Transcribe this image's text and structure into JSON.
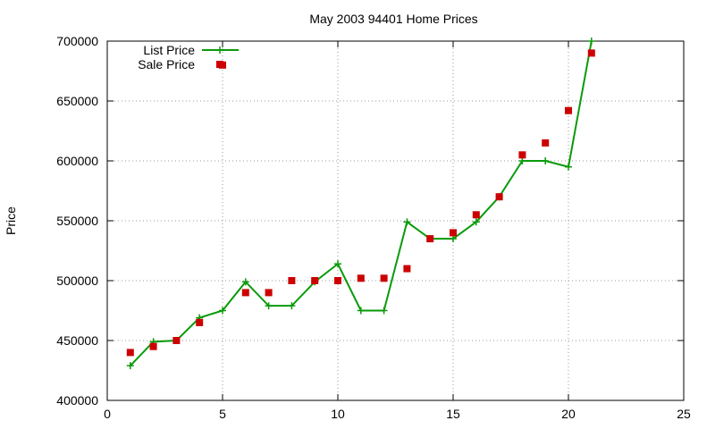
{
  "chart_data": {
    "type": "line",
    "title": "May 2003 94401 Home Prices",
    "xlabel": "",
    "ylabel": "Price",
    "xlim": [
      0,
      25
    ],
    "ylim": [
      400000,
      700000
    ],
    "xticks": [
      0,
      5,
      10,
      15,
      20,
      25
    ],
    "yticks": [
      400000,
      450000,
      500000,
      550000,
      600000,
      650000,
      700000
    ],
    "grid": true,
    "legend_position": "top-left",
    "series": [
      {
        "name": "List Price",
        "style": "line+cross",
        "color": "#0a9a0a",
        "x": [
          1,
          2,
          3,
          4,
          5,
          6,
          7,
          8,
          9,
          10,
          11,
          12,
          13,
          14,
          15,
          16,
          17,
          18,
          19,
          20,
          21
        ],
        "y": [
          429000,
          449000,
          450000,
          469000,
          475000,
          499000,
          479000,
          479000,
          499000,
          514000,
          475000,
          475000,
          549000,
          535000,
          535000,
          549000,
          570000,
          600000,
          600000,
          595000,
          700000
        ]
      },
      {
        "name": "Sale Price",
        "style": "square-points",
        "color": "#cc0000",
        "x": [
          1,
          2,
          3,
          4,
          5,
          6,
          7,
          8,
          9,
          10,
          11,
          12,
          13,
          14,
          15,
          16,
          17,
          18,
          19,
          20,
          21
        ],
        "y": [
          440000,
          445000,
          450000,
          465000,
          680000,
          490000,
          490000,
          500000,
          500000,
          500000,
          502000,
          502000,
          510000,
          535000,
          540000,
          555000,
          570000,
          605000,
          615000,
          642000,
          690000
        ]
      }
    ]
  }
}
